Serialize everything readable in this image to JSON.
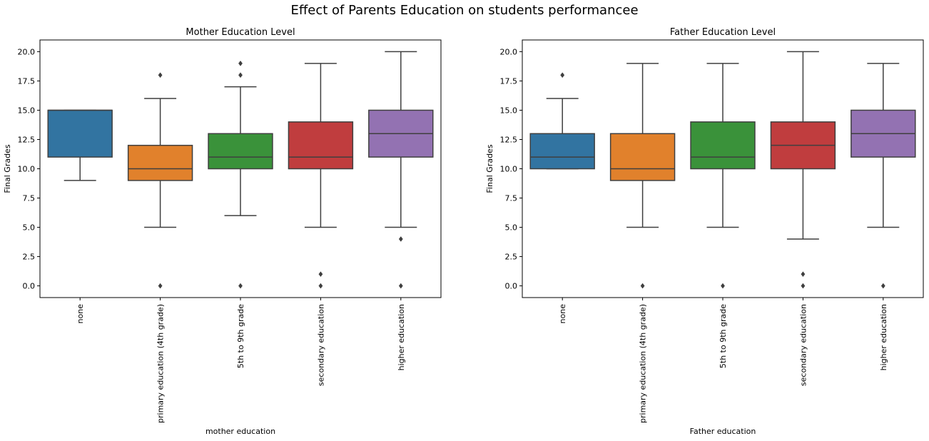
{
  "figure": {
    "suptitle": "Effect of Parents Education on students performancee"
  },
  "chart_data": [
    {
      "type": "box",
      "title": "Mother Education Level",
      "xlabel": "mother education",
      "ylabel": "Final Grades",
      "ylim": [
        -1,
        21
      ],
      "yticks": [
        "0.0",
        "2.5",
        "5.0",
        "7.5",
        "10.0",
        "12.5",
        "15.0",
        "17.5",
        "20.0"
      ],
      "ytick_values": [
        0,
        2.5,
        5,
        7.5,
        10,
        12.5,
        15,
        17.5,
        20
      ],
      "grid": false,
      "categories": [
        "none",
        "primary education (4th grade)",
        "5th to 9th grade",
        "secondary education",
        "higher education"
      ],
      "colors": [
        "#3274a1",
        "#e1812c",
        "#3a923a",
        "#c03d3e",
        "#9372b2"
      ],
      "boxes": [
        {
          "whislo": 9,
          "q1": 11,
          "med": 15,
          "q3": 15,
          "whishi": 15,
          "fliers": []
        },
        {
          "whislo": 5,
          "q1": 9,
          "med": 10,
          "q3": 12,
          "whishi": 16,
          "fliers": [
            0,
            18
          ]
        },
        {
          "whislo": 6,
          "q1": 10,
          "med": 11,
          "q3": 13,
          "whishi": 17,
          "fliers": [
            0,
            18,
            19
          ]
        },
        {
          "whislo": 5,
          "q1": 10,
          "med": 11,
          "q3": 14,
          "whishi": 19,
          "fliers": [
            0,
            1
          ]
        },
        {
          "whislo": 5,
          "q1": 11,
          "med": 13,
          "q3": 15,
          "whishi": 20,
          "fliers": [
            0,
            4
          ]
        }
      ]
    },
    {
      "type": "box",
      "title": "Father Education Level",
      "xlabel": "Father education",
      "ylabel": "Final Grades",
      "ylim": [
        -1,
        21
      ],
      "yticks": [
        "0.0",
        "2.5",
        "5.0",
        "7.5",
        "10.0",
        "12.5",
        "15.0",
        "17.5",
        "20.0"
      ],
      "ytick_values": [
        0,
        2.5,
        5,
        7.5,
        10,
        12.5,
        15,
        17.5,
        20
      ],
      "grid": false,
      "categories": [
        "none",
        "primary education (4th grade)",
        "5th to 9th grade",
        "secondary education",
        "higher education"
      ],
      "colors": [
        "#3274a1",
        "#e1812c",
        "#3a923a",
        "#c03d3e",
        "#9372b2"
      ],
      "boxes": [
        {
          "whislo": 10,
          "q1": 10,
          "med": 11,
          "q3": 13,
          "whishi": 16,
          "fliers": [
            18
          ]
        },
        {
          "whislo": 5,
          "q1": 9,
          "med": 10,
          "q3": 13,
          "whishi": 19,
          "fliers": [
            0
          ]
        },
        {
          "whislo": 5,
          "q1": 10,
          "med": 11,
          "q3": 14,
          "whishi": 19,
          "fliers": [
            0
          ]
        },
        {
          "whislo": 4,
          "q1": 10,
          "med": 12,
          "q3": 14,
          "whishi": 20,
          "fliers": [
            0,
            1
          ]
        },
        {
          "whislo": 5,
          "q1": 11,
          "med": 13,
          "q3": 15,
          "whishi": 19,
          "fliers": [
            0
          ]
        }
      ]
    }
  ]
}
